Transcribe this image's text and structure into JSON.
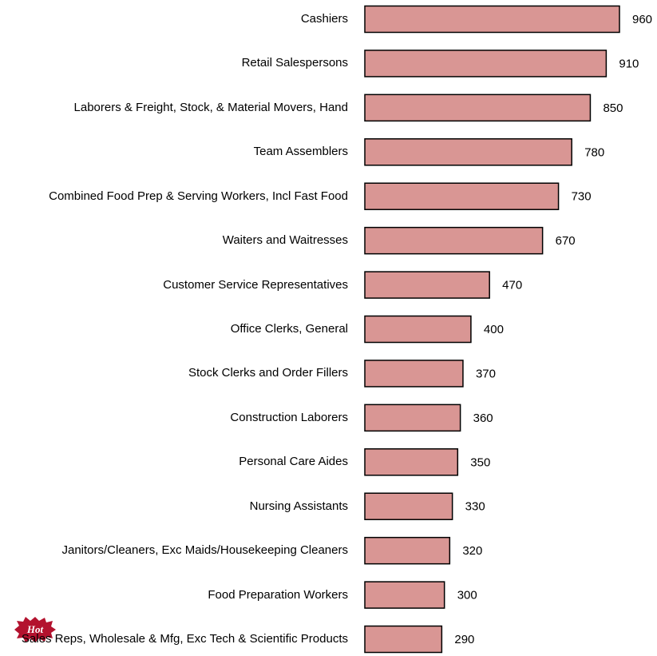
{
  "chart_data": {
    "type": "bar",
    "orientation": "horizontal",
    "categories": [
      "Cashiers",
      "Retail Salespersons",
      "Laborers & Freight, Stock, & Material Movers, Hand",
      "Team Assemblers",
      "Combined Food Prep & Serving Workers, Incl Fast Food",
      "Waiters and Waitresses",
      "Customer Service Representatives",
      "Office Clerks, General",
      "Stock Clerks and Order Fillers",
      "Construction Laborers",
      "Personal Care Aides",
      "Nursing Assistants",
      "Janitors/Cleaners, Exc Maids/Housekeeping Cleaners",
      "Food Preparation Workers",
      "Sales Reps, Wholesale & Mfg, Exc Tech & Scientific Products"
    ],
    "values": [
      960,
      910,
      850,
      780,
      730,
      670,
      470,
      400,
      370,
      360,
      350,
      330,
      320,
      300,
      290
    ],
    "color": "#d99694",
    "annotation": "Hot"
  }
}
